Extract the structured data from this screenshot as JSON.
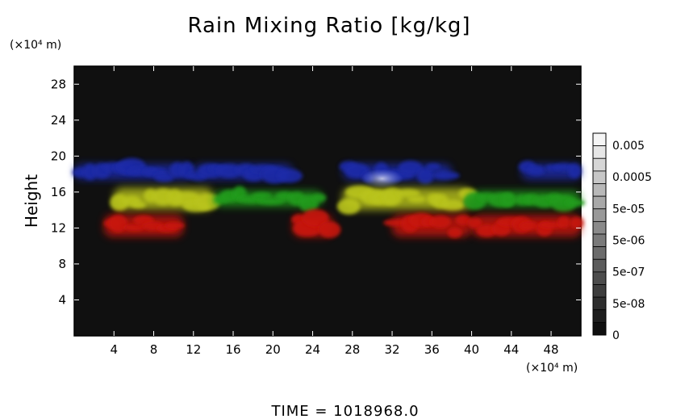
{
  "chart_data": {
    "type": "heatmap",
    "title": "Rain Mixing Ratio [kg/kg]",
    "ylabel": "Height",
    "xlabel": "",
    "x_unit": "(×10⁴ m)",
    "y_unit": "(×10⁴ m)",
    "xlim": [
      0,
      51
    ],
    "ylim": [
      0,
      30
    ],
    "x_ticks": [
      4,
      8,
      12,
      16,
      20,
      24,
      28,
      32,
      36,
      40,
      44,
      48
    ],
    "y_ticks": [
      4,
      8,
      12,
      16,
      20,
      24,
      28
    ],
    "colorbar": {
      "labels": [
        "0.005",
        "0.0005",
        "5e-05",
        "5e-06",
        "5e-07",
        "5e-08",
        "0"
      ],
      "steps": 16
    },
    "layers": [
      {
        "color": "#1e2ca8",
        "height_range": [
          17,
          19.5
        ],
        "x_ranges": [
          [
            0,
            12
          ],
          [
            12,
            22
          ],
          [
            27,
            38
          ],
          [
            45,
            51
          ]
        ]
      },
      {
        "color": "#b9c41c",
        "height_range": [
          13.5,
          17
        ],
        "x_ranges": [
          [
            4,
            14
          ],
          [
            27,
            40
          ]
        ]
      },
      {
        "color": "#249c1c",
        "height_range": [
          14,
          16.5
        ],
        "x_ranges": [
          [
            14,
            25
          ],
          [
            40,
            51
          ]
        ]
      },
      {
        "color": "#c8140e",
        "height_range": [
          10.5,
          14
        ],
        "x_ranges": [
          [
            3,
            11
          ],
          [
            22,
            26
          ],
          [
            32,
            40
          ],
          [
            40,
            51
          ]
        ]
      }
    ],
    "grid": false,
    "background_color": "#0f0f0f"
  },
  "footer": {
    "time_label": "TIME  =  1018968.0"
  }
}
